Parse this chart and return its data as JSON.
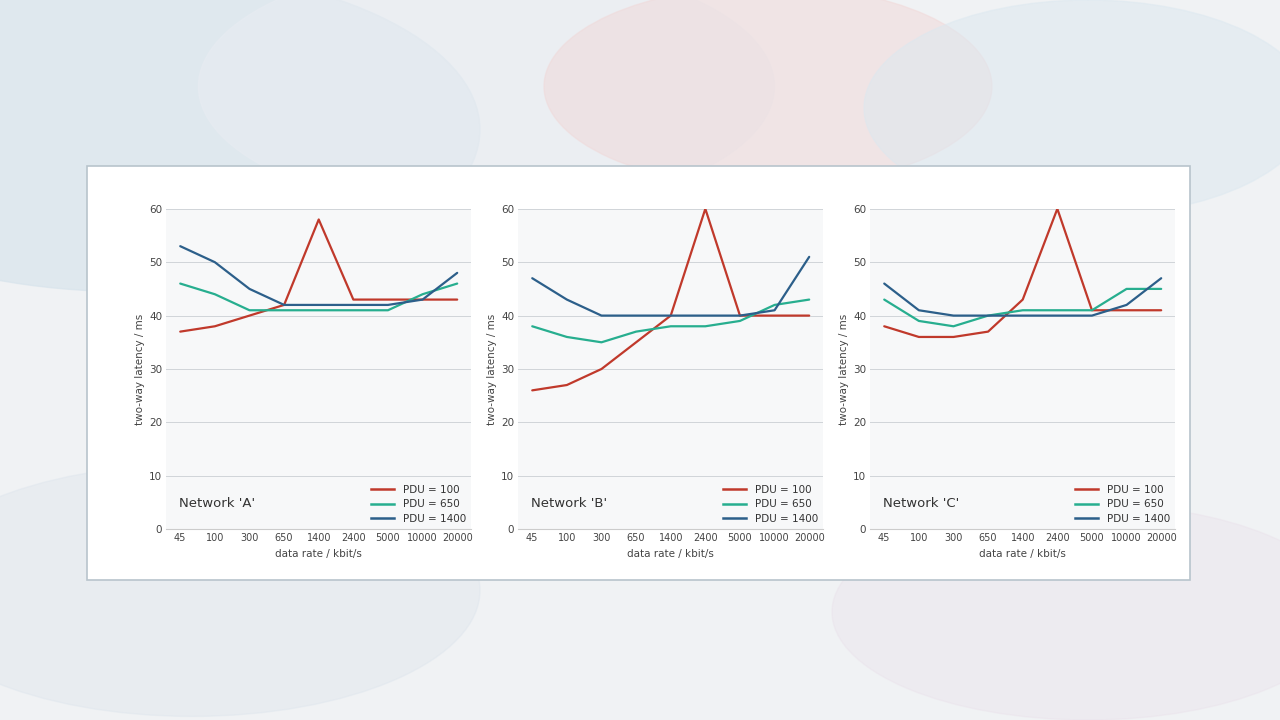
{
  "x_labels": [
    "45",
    "100",
    "300",
    "650",
    "1400",
    "2400",
    "5000",
    "10000",
    "20000"
  ],
  "networks": [
    "Network 'A'",
    "Network 'B'",
    "Network 'C'"
  ],
  "ylabel": "two-way latency / ms",
  "xlabel": "data rate / kbit/s",
  "ylim": [
    0,
    60
  ],
  "yticks": [
    0,
    10,
    20,
    30,
    40,
    50,
    60
  ],
  "colors": {
    "pdu100": "#c0392b",
    "pdu650": "#27ae8f",
    "pdu1400": "#2c5f8a"
  },
  "legend_labels": [
    "PDU = 100",
    "PDU = 650",
    "PDU = 1400"
  ],
  "data": {
    "A": {
      "pdu100": [
        37,
        38,
        40,
        42,
        58,
        43,
        43,
        43,
        43
      ],
      "pdu650": [
        46,
        44,
        41,
        41,
        41,
        41,
        41,
        44,
        46
      ],
      "pdu1400": [
        53,
        50,
        45,
        42,
        42,
        42,
        42,
        43,
        48
      ]
    },
    "B": {
      "pdu100": [
        26,
        27,
        30,
        35,
        40,
        60,
        40,
        40,
        40
      ],
      "pdu650": [
        38,
        36,
        35,
        37,
        38,
        38,
        39,
        42,
        43
      ],
      "pdu1400": [
        47,
        43,
        40,
        40,
        40,
        40,
        40,
        41,
        51
      ]
    },
    "C": {
      "pdu100": [
        38,
        36,
        36,
        37,
        43,
        60,
        41,
        41,
        41
      ],
      "pdu650": [
        43,
        39,
        38,
        40,
        41,
        41,
        41,
        45,
        45
      ],
      "pdu1400": [
        46,
        41,
        40,
        40,
        40,
        40,
        40,
        42,
        47
      ]
    }
  }
}
